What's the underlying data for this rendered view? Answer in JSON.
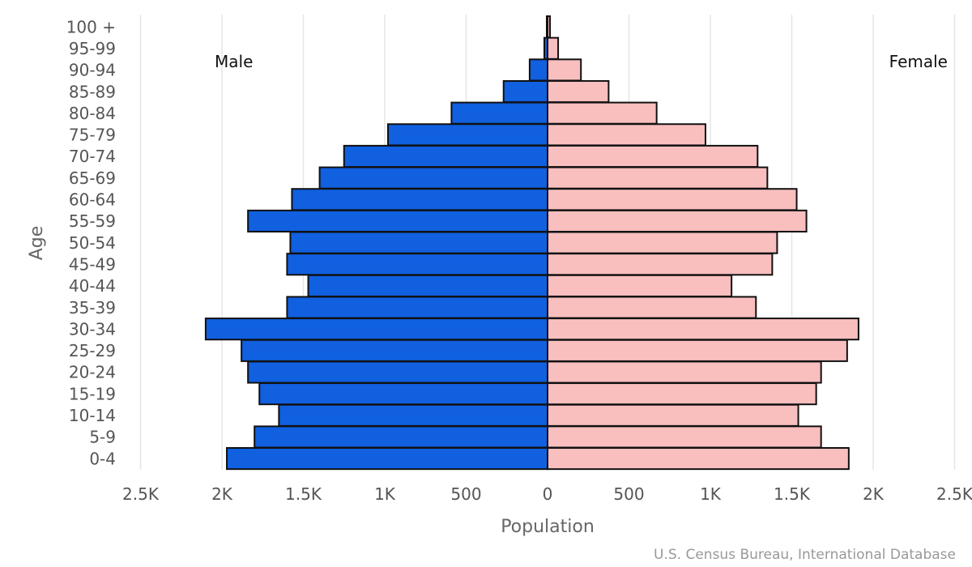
{
  "chart_data": {
    "type": "bar",
    "orientation": "horizontal",
    "subtype": "population-pyramid",
    "categories": [
      "100 +",
      "95-99",
      "90-94",
      "85-89",
      "80-84",
      "75-79",
      "70-74",
      "65-69",
      "60-64",
      "55-59",
      "50-54",
      "45-49",
      "40-44",
      "35-39",
      "30-34",
      "25-29",
      "20-24",
      "15-19",
      "10-14",
      "5-9",
      "0-4"
    ],
    "series": [
      {
        "name": "Male",
        "color": "#1060E0",
        "values": [
          5,
          20,
          110,
          270,
          590,
          980,
          1250,
          1400,
          1570,
          1840,
          1580,
          1600,
          1470,
          1600,
          2100,
          1880,
          1840,
          1770,
          1650,
          1800,
          1970
        ]
      },
      {
        "name": "Female",
        "color": "#F9BEBE",
        "values": [
          15,
          65,
          205,
          375,
          670,
          970,
          1290,
          1350,
          1530,
          1590,
          1410,
          1380,
          1130,
          1280,
          1910,
          1840,
          1680,
          1650,
          1540,
          1680,
          1850
        ]
      }
    ],
    "xlim": [
      -2500,
      2500
    ],
    "x_ticks": [
      -2500,
      -2000,
      -1500,
      -1000,
      -500,
      0,
      500,
      1000,
      1500,
      2000,
      2500
    ],
    "x_tick_labels": [
      "2.5K",
      "2K",
      "1.5K",
      "1K",
      "500",
      "0",
      "500",
      "1K",
      "1.5K",
      "2K",
      "2.5K"
    ],
    "xlabel": "Population",
    "ylabel": "Age",
    "legend_left": "Male",
    "legend_right": "Female",
    "grid": true,
    "credit": "U.S. Census Bureau, International Database",
    "bar_border_color": "#111111",
    "grid_color": "#e6e6e6"
  }
}
